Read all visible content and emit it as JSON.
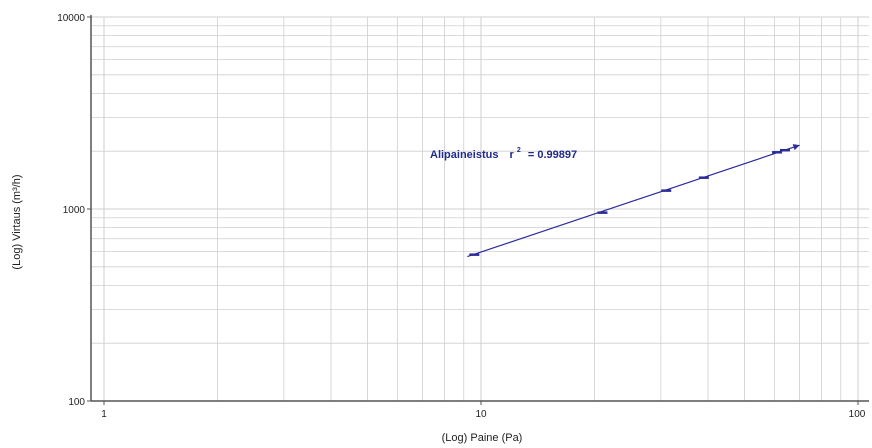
{
  "chart_data": {
    "type": "scatter",
    "xlabel": "(Log) Paine (Pa)",
    "ylabel": "(Log) Virtaus (m³/h)",
    "x_scale": "log",
    "y_scale": "log",
    "xlim": [
      1,
      100
    ],
    "ylim": [
      100,
      10000
    ],
    "x_tick_labels": [
      "1",
      "10",
      "100"
    ],
    "y_tick_labels": [
      "100",
      "1000",
      "10000"
    ],
    "grid": true,
    "annotation": {
      "prefix": "Alipaineistus",
      "r": "r",
      "sup": "2",
      "suffix": "= 0.99897"
    },
    "colors": {
      "series": "#2b2b9a",
      "grid": "#cfcfcf",
      "axis": "#555555"
    },
    "series": [
      {
        "points": [
          {
            "x": 9.6,
            "y": 580
          },
          {
            "x": 21,
            "y": 960
          },
          {
            "x": 31,
            "y": 1250
          },
          {
            "x": 39,
            "y": 1460
          },
          {
            "x": 61,
            "y": 1980
          },
          {
            "x": 64,
            "y": 2030
          }
        ],
        "fit_line": {
          "x": [
            9.2,
            70
          ],
          "y": [
            565,
            2150
          ]
        }
      }
    ]
  }
}
